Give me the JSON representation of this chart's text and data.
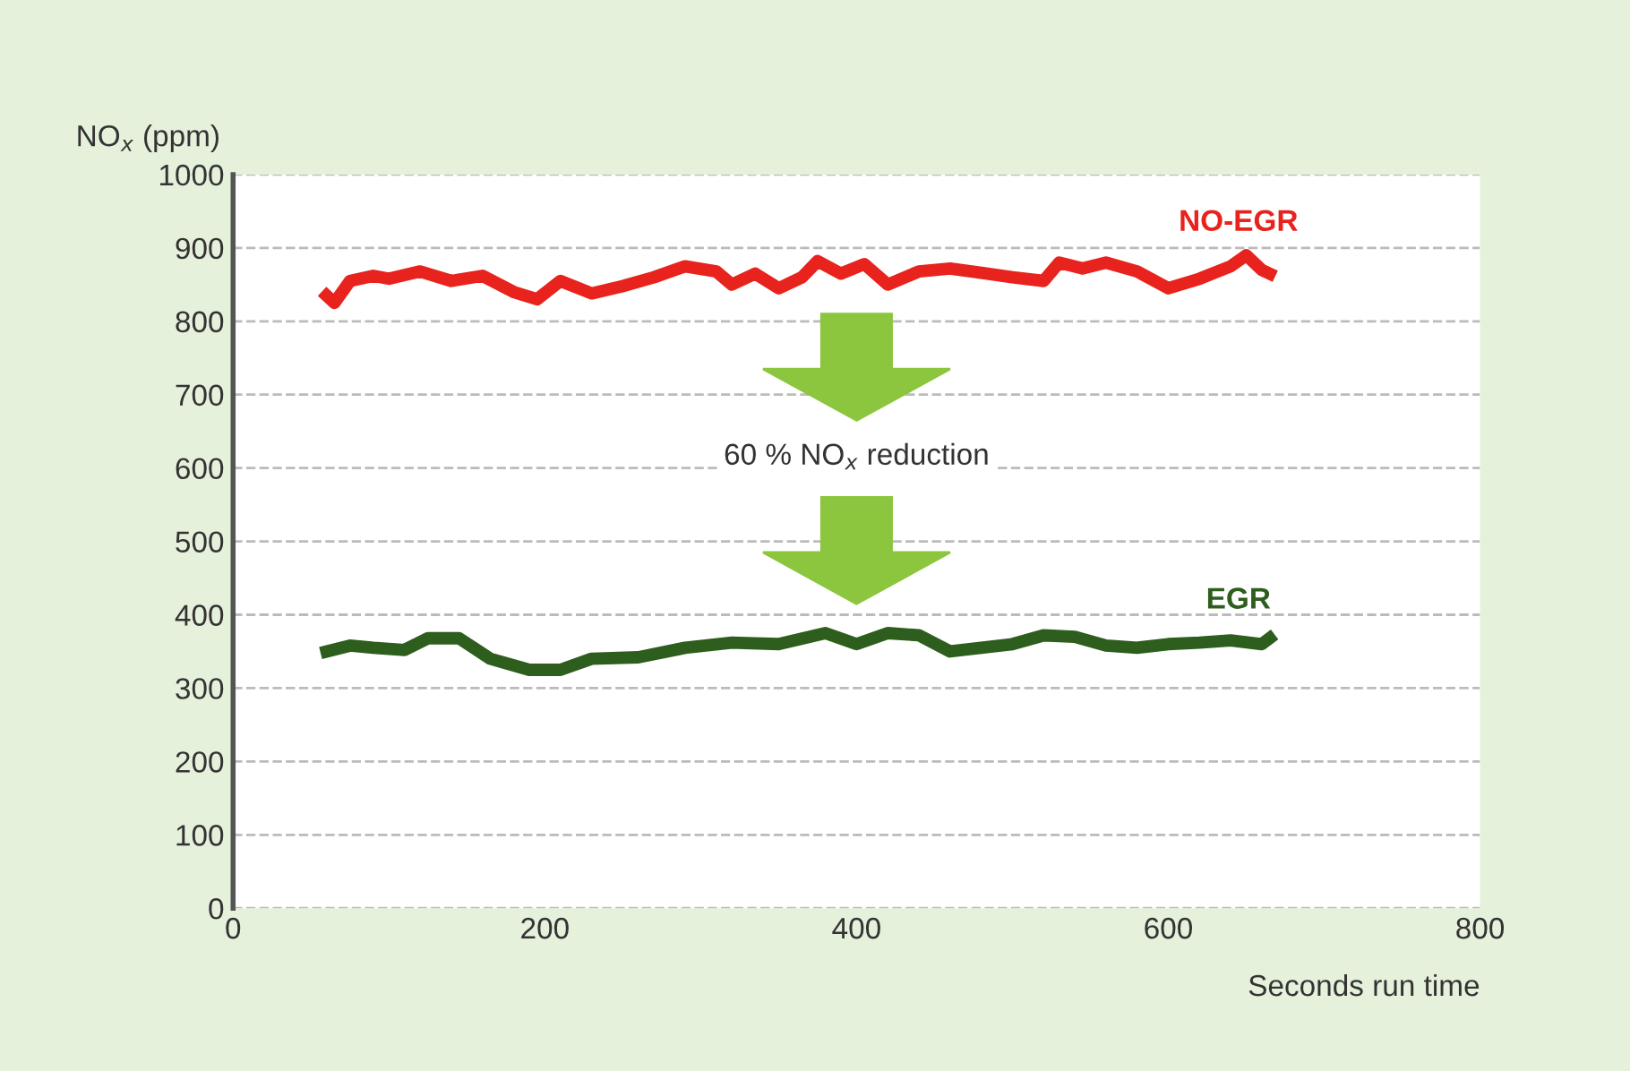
{
  "chart_data": {
    "type": "line",
    "ylabel": "NO$_{x}$ (ppm)",
    "xlabel": "Seconds run time",
    "xlim": [
      0,
      800
    ],
    "xticks": [
      0,
      200,
      400,
      600,
      800
    ],
    "ylim": [
      0,
      1000
    ],
    "yticks": [
      0,
      100,
      200,
      300,
      400,
      500,
      600,
      700,
      800,
      900,
      1000
    ],
    "grid": "y",
    "legend": false,
    "marker": "none",
    "line_style": "solid",
    "annotations": [
      "60 % NO$_{x}$ reduction"
    ],
    "series": [
      {
        "name": "NO-EGR",
        "color": "#e8231e",
        "x": [
          60,
          65,
          75,
          90,
          100,
          120,
          140,
          160,
          180,
          195,
          210,
          230,
          250,
          270,
          290,
          310,
          320,
          335,
          350,
          365,
          375,
          390,
          405,
          420,
          440,
          460,
          480,
          500,
          520,
          530,
          545,
          560,
          580,
          600,
          620,
          640,
          650,
          660,
          665
        ],
        "values": [
          835,
          825,
          855,
          862,
          858,
          868,
          855,
          862,
          840,
          830,
          855,
          838,
          848,
          860,
          875,
          868,
          850,
          865,
          845,
          860,
          882,
          865,
          878,
          850,
          868,
          872,
          866,
          860,
          855,
          880,
          872,
          880,
          868,
          845,
          858,
          875,
          890,
          870,
          865
        ]
      },
      {
        "name": "EGR",
        "color": "#2e5e1e",
        "x": [
          60,
          75,
          90,
          110,
          125,
          145,
          165,
          190,
          210,
          230,
          260,
          290,
          320,
          350,
          380,
          400,
          420,
          440,
          460,
          480,
          500,
          520,
          540,
          560,
          580,
          600,
          620,
          640,
          660,
          665
        ],
        "values": [
          350,
          358,
          355,
          352,
          368,
          368,
          340,
          325,
          325,
          340,
          342,
          355,
          362,
          360,
          375,
          360,
          375,
          372,
          350,
          355,
          360,
          372,
          370,
          358,
          355,
          360,
          362,
          365,
          360,
          368
        ]
      }
    ]
  }
}
